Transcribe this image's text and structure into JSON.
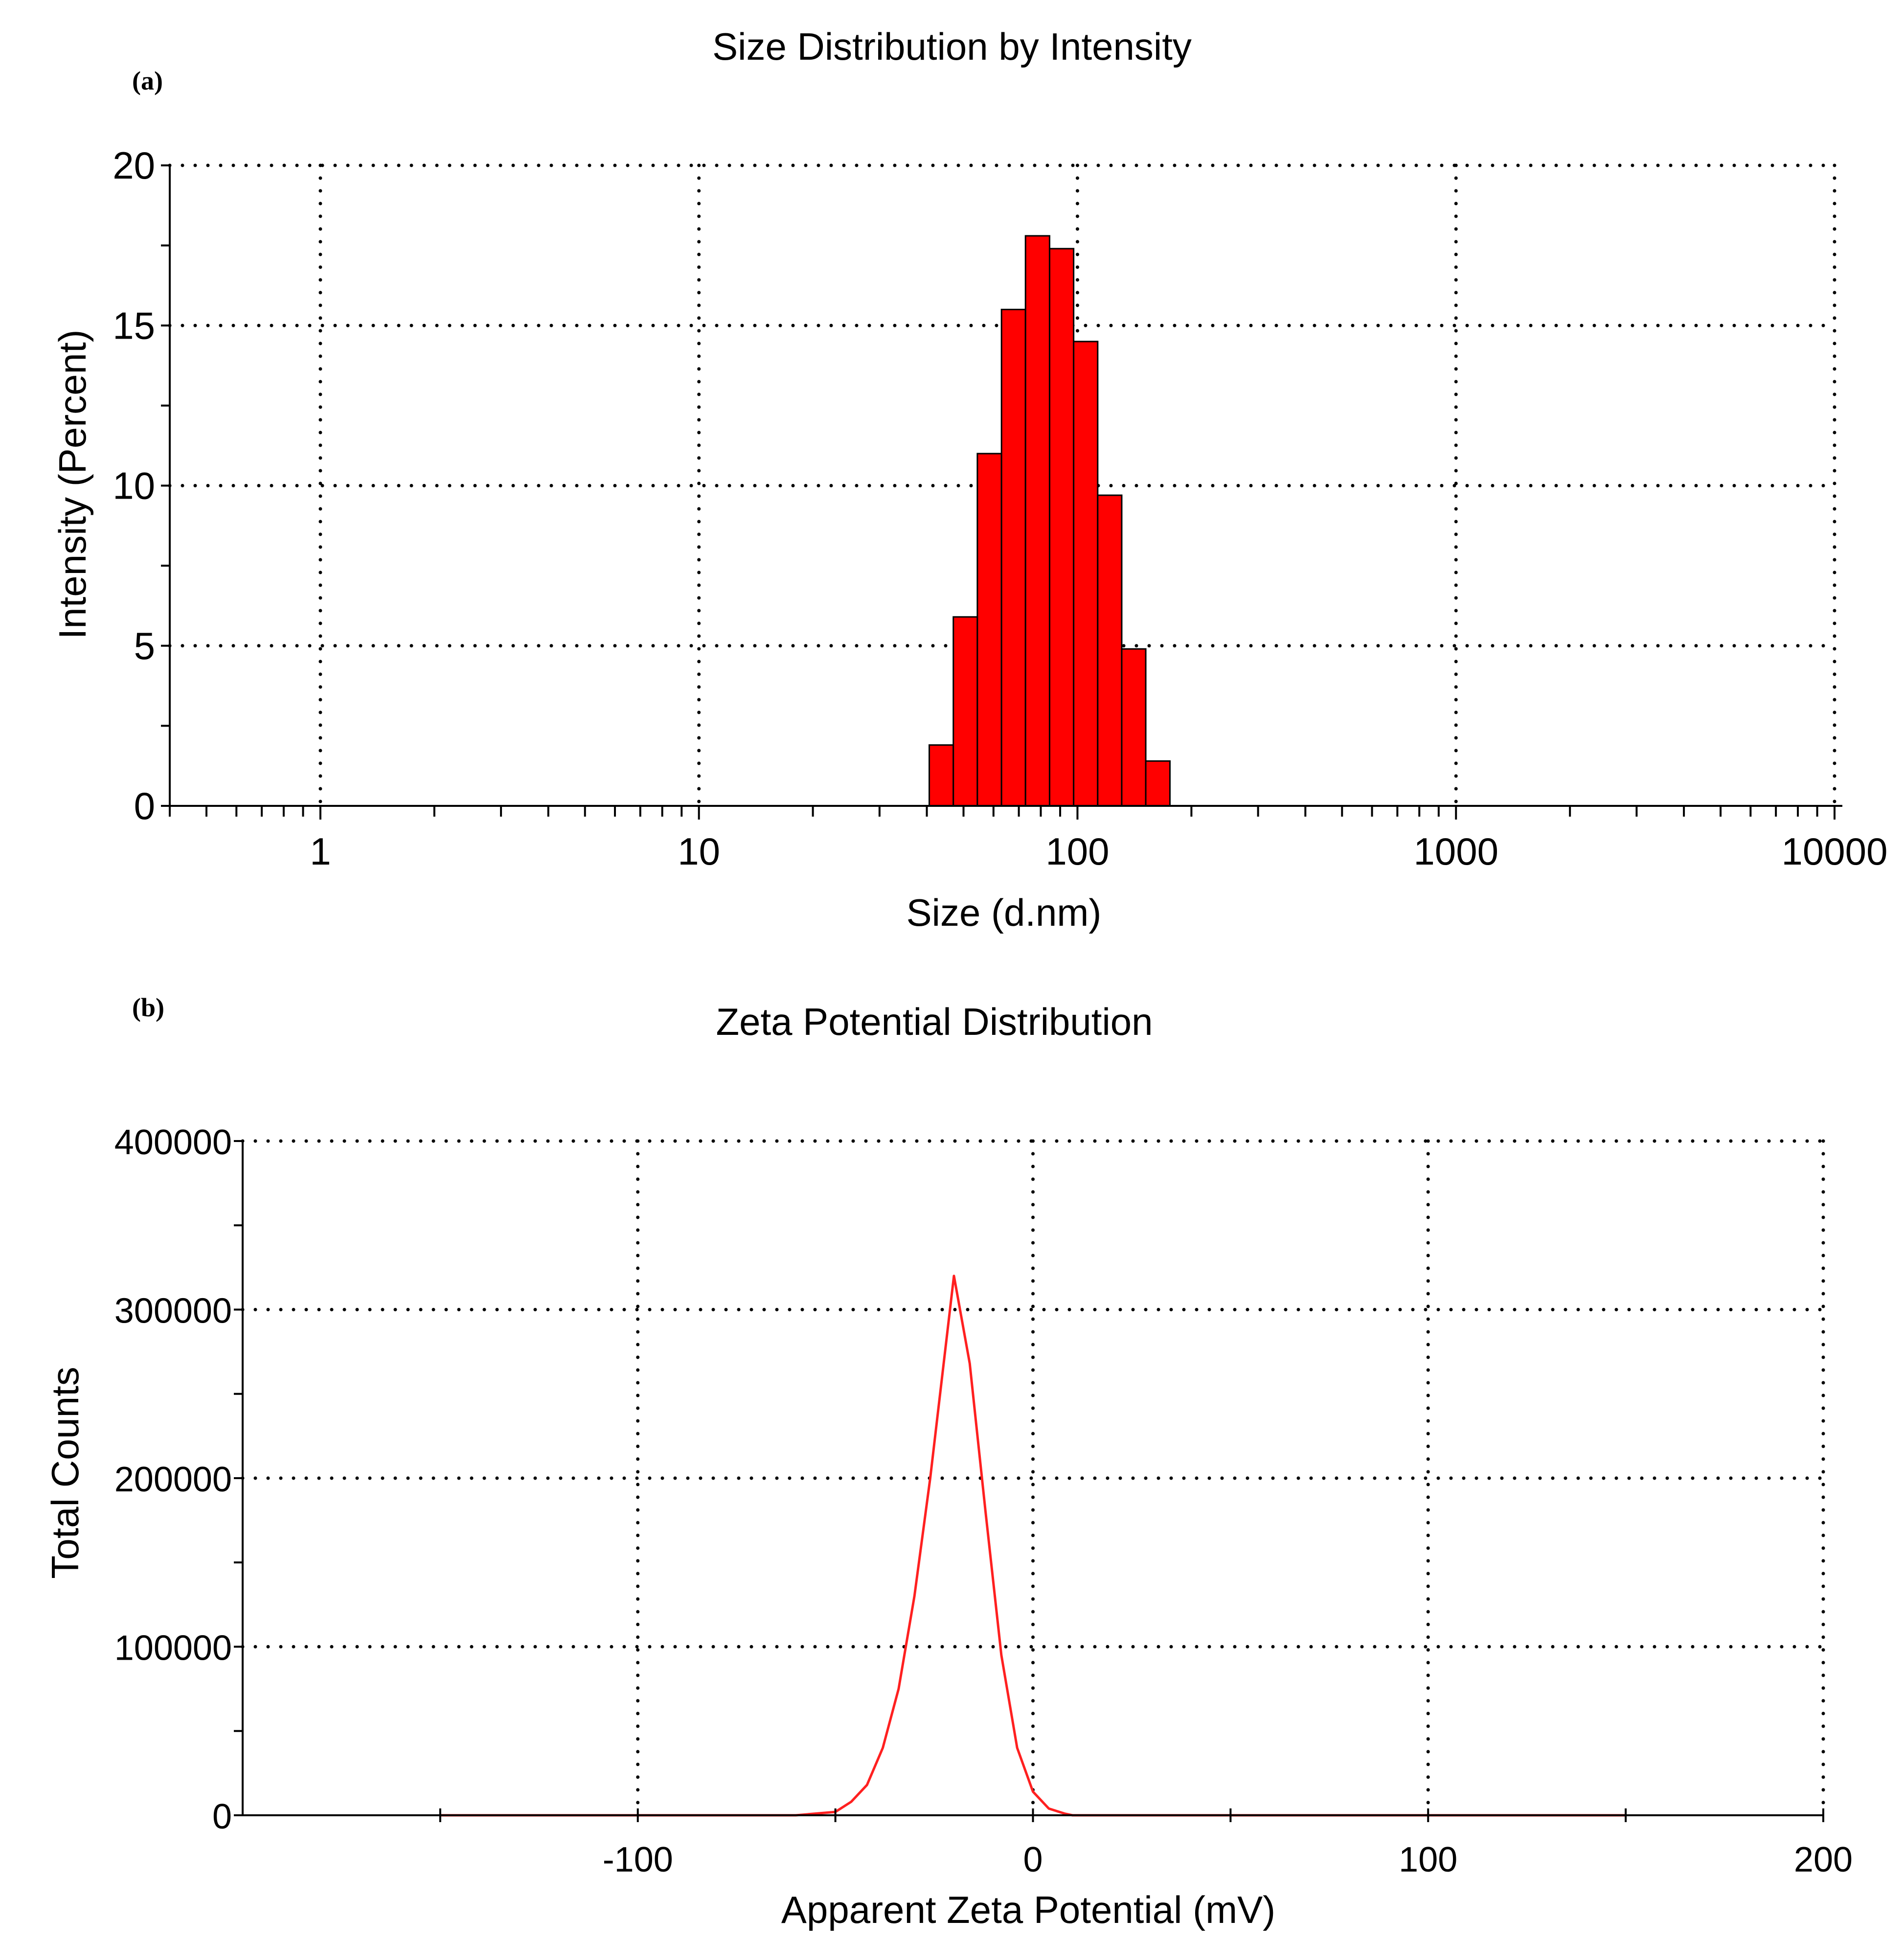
{
  "chart_data": [
    {
      "panel_label": "(a)",
      "type": "bar",
      "title": "Size Distribution by Intensity",
      "xlabel": "Size (d.nm)",
      "ylabel": "Intensity (Percent)",
      "x_scale": "log",
      "xlim": [
        0.4,
        10000
      ],
      "ylim": [
        0,
        20
      ],
      "grid": true,
      "x_ticks": [
        "1",
        "10",
        "100",
        "1000",
        "10000"
      ],
      "y_ticks": [
        "0",
        "5",
        "10",
        "15",
        "20"
      ],
      "colors": {
        "bar": "#ff0000",
        "edge": "#000000"
      },
      "bins": [
        {
          "x_from": 40.6,
          "x_to": 47.0,
          "value": 1.9
        },
        {
          "x_from": 47.0,
          "x_to": 54.4,
          "value": 5.9
        },
        {
          "x_from": 54.4,
          "x_to": 63.0,
          "value": 11.0
        },
        {
          "x_from": 63.0,
          "x_to": 72.9,
          "value": 15.5
        },
        {
          "x_from": 72.9,
          "x_to": 84.4,
          "value": 17.8
        },
        {
          "x_from": 84.4,
          "x_to": 97.7,
          "value": 17.4
        },
        {
          "x_from": 97.7,
          "x_to": 113.1,
          "value": 14.5
        },
        {
          "x_from": 113.1,
          "x_to": 130.9,
          "value": 9.7
        },
        {
          "x_from": 130.9,
          "x_to": 151.5,
          "value": 4.9
        },
        {
          "x_from": 151.5,
          "x_to": 175.5,
          "value": 1.4
        }
      ]
    },
    {
      "panel_label": "(b)",
      "type": "line",
      "title": "Zeta Potential Distribution",
      "xlabel": "Apparent Zeta Potential (mV)",
      "ylabel": "Total Counts",
      "xlim": [
        -200,
        200
      ],
      "ylim": [
        0,
        400000
      ],
      "grid": true,
      "x_ticks": [
        "-100",
        "0",
        "100",
        "200"
      ],
      "y_ticks": [
        "0",
        "100000",
        "200000",
        "300000",
        "400000"
      ],
      "colors": {
        "line": "#ff2020"
      },
      "series": [
        {
          "x": [
            -150,
            -60,
            -50,
            -46,
            -42,
            -38,
            -34,
            -30,
            -26,
            -22,
            -20,
            -16,
            -12,
            -8,
            -4,
            0,
            4,
            8,
            10,
            150
          ],
          "y": [
            0,
            0,
            2000,
            8000,
            18000,
            40000,
            75000,
            130000,
            200000,
            280000,
            320000,
            268000,
            180000,
            95000,
            40000,
            14000,
            4000,
            1000,
            0,
            0
          ]
        }
      ]
    }
  ]
}
